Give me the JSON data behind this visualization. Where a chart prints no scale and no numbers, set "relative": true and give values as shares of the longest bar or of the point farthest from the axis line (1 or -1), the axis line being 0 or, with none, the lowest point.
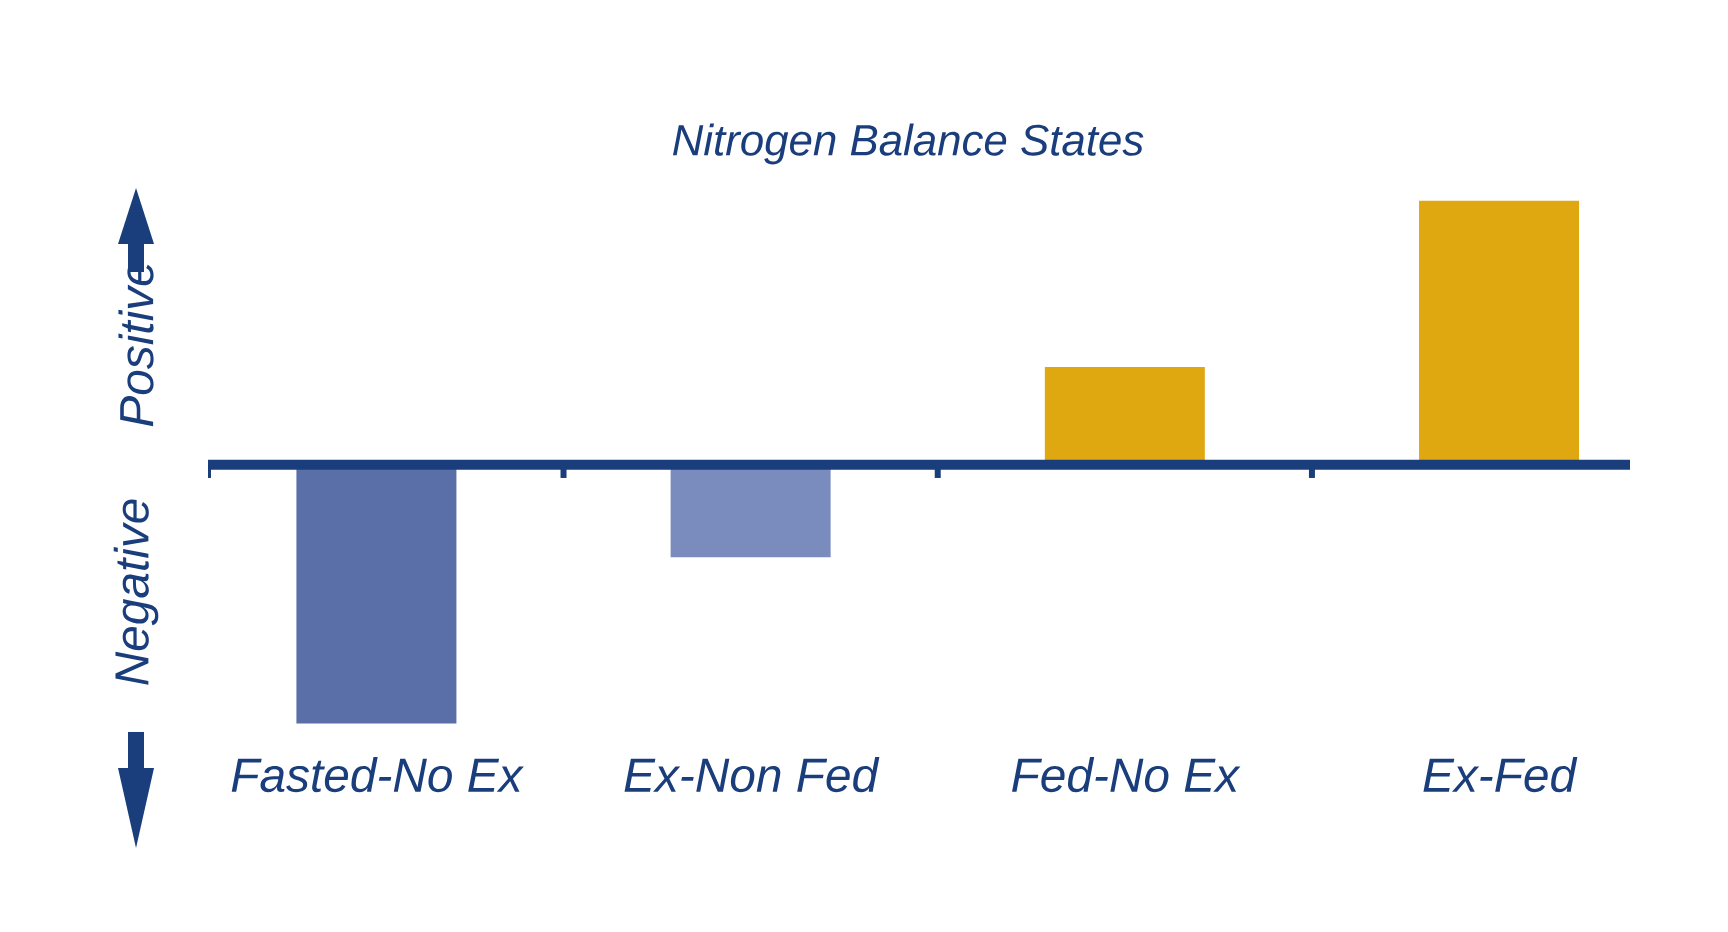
{
  "chart_data": {
    "type": "bar",
    "title": "Nitrogen Balance States",
    "relative": true,
    "categories": [
      "Fasted-No Ex",
      "Ex-Non Fed",
      "Fed-No Ex",
      "Ex-Fed"
    ],
    "values": [
      -0.98,
      -0.35,
      0.37,
      1
    ],
    "colors": [
      "#5a6fa8",
      "#7a8bbd",
      "#e0a810",
      "#e0a810"
    ],
    "annotations": [
      "Positive",
      "Negative"
    ],
    "ref_lines": [
      {
        "axis": "y",
        "value": 0,
        "color": "#1a3d7c"
      }
    ]
  }
}
